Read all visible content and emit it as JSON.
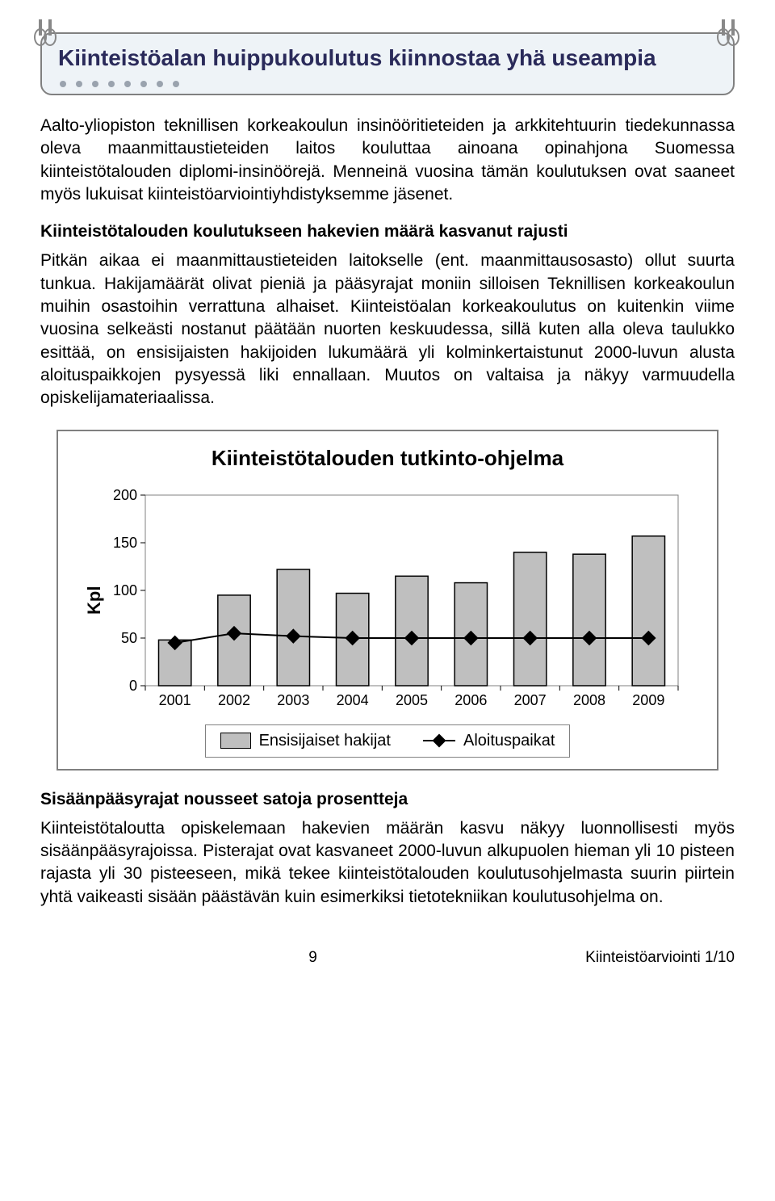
{
  "banner": {
    "title": "Kiinteistöalan huippukoulutus kiinnostaa yhä useampia"
  },
  "body": {
    "p1": "Aalto-yliopiston teknillisen korkeakoulun insinööritieteiden ja arkkitehtuurin tiedekunnassa oleva maanmittaustieteiden laitos kouluttaa ainoana opinahjona Suomessa kiinteistötalouden diplomi-insinöörejä. Menneinä vuosina tämän koulutuksen ovat saaneet myös lukuisat kiinteistöarviointiyhdistyksemme jäsenet.",
    "sub1": "Kiinteistötalouden koulutukseen hakevien määrä kasvanut rajusti",
    "p2": "Pitkän aikaa ei maanmittaustieteiden laitokselle (ent. maanmittausosasto) ollut suurta tunkua. Hakijamäärät olivat pieniä ja pääsyrajat moniin silloisen Teknillisen korkeakoulun muihin osastoihin verrattuna alhaiset. Kiinteistöalan korkeakoulutus on kuitenkin viime vuosina selkeästi nostanut päätään nuorten keskuudessa, sillä kuten alla oleva taulukko esittää, on ensisijaisten hakijoiden lukumäärä yli kolminkertaistunut 2000-luvun alusta aloituspaikkojen pysyessä liki ennallaan. Muutos on valtaisa ja näkyy varmuudella opiskelijamateriaalissa.",
    "sub2": "Sisäänpääsyrajat nousseet satoja prosentteja",
    "p3": "Kiinteistötaloutta opiskelemaan hakevien määrän kasvu näkyy luonnollisesti myös sisäänpääsyrajoissa. Pisterajat ovat kasvaneet 2000-luvun alkupuolen hieman yli 10 pisteen rajasta yli 30 pisteeseen, mikä tekee kiinteistötalouden koulutusohjelmasta suurin piirtein yhtä vaikeasti sisään päästävän kuin esimerkiksi tietotekniikan koulutusohjelma on."
  },
  "chart": {
    "title": "Kiinteistötalouden tutkinto-ohjelma",
    "type": "bar_and_line",
    "ylabel": "Kpl",
    "ylim": [
      0,
      200
    ],
    "ytick_step": 50,
    "yticks": [
      0,
      50,
      100,
      150,
      200
    ],
    "categories": [
      "2001",
      "2002",
      "2003",
      "2004",
      "2005",
      "2006",
      "2007",
      "2008",
      "2009"
    ],
    "bar_series": {
      "name": "Ensisijaiset hakijat",
      "values": [
        48,
        95,
        122,
        97,
        115,
        108,
        140,
        138,
        157
      ],
      "color": "#bfbfbf",
      "border_color": "#000000"
    },
    "line_series": {
      "name": "Aloituspaikat",
      "values": [
        45,
        55,
        52,
        50,
        50,
        50,
        50,
        50,
        50
      ],
      "color": "#000000",
      "marker": "diamond",
      "marker_size": 12
    },
    "background_color": "#ffffff",
    "axis_color": "#808080",
    "tick_font_size": 18,
    "bar_width": 0.55
  },
  "footer": {
    "page_number": "9",
    "doc_ref": "Kiinteistöarviointi 1/10"
  }
}
